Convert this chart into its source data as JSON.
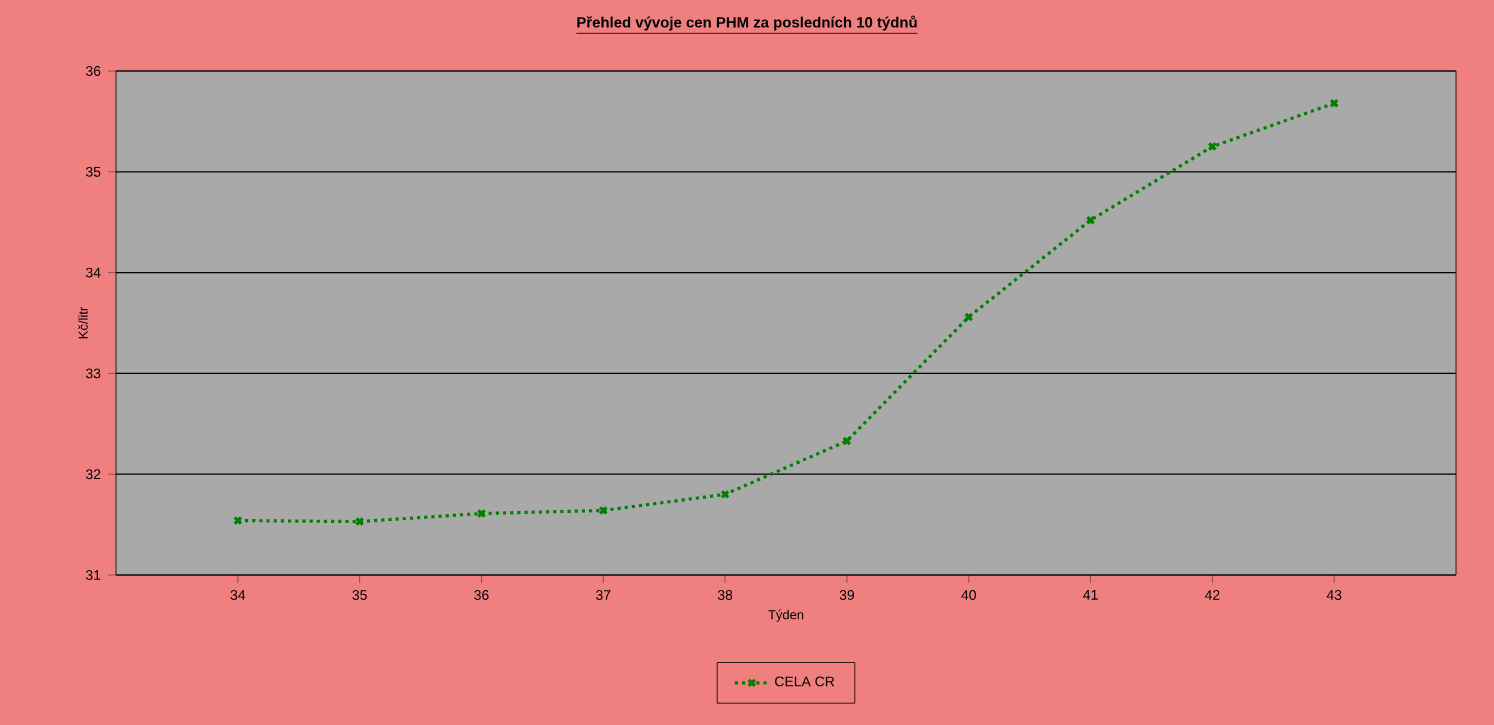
{
  "chart_data": {
    "type": "line",
    "title": "Přehled vývoje cen PHM za posledních 10 týdnů",
    "xlabel": "Týden",
    "ylabel": "Kč/litr",
    "x": [
      34,
      35,
      36,
      37,
      38,
      39,
      40,
      41,
      42,
      43
    ],
    "series": [
      {
        "name": "CELA CR",
        "color": "#008000",
        "values": [
          31.54,
          31.53,
          31.61,
          31.64,
          31.8,
          32.33,
          33.56,
          34.52,
          35.25,
          35.68
        ]
      }
    ],
    "xlim": [
      33,
      44
    ],
    "xticks": [
      34,
      35,
      36,
      37,
      38,
      39,
      40,
      41,
      42,
      43
    ],
    "ylim": [
      31,
      36
    ],
    "yticks": [
      31,
      32,
      33,
      34,
      35,
      36
    ],
    "grid": "y",
    "legend": "bottom",
    "marker": "cross",
    "line_style": "dotted"
  }
}
